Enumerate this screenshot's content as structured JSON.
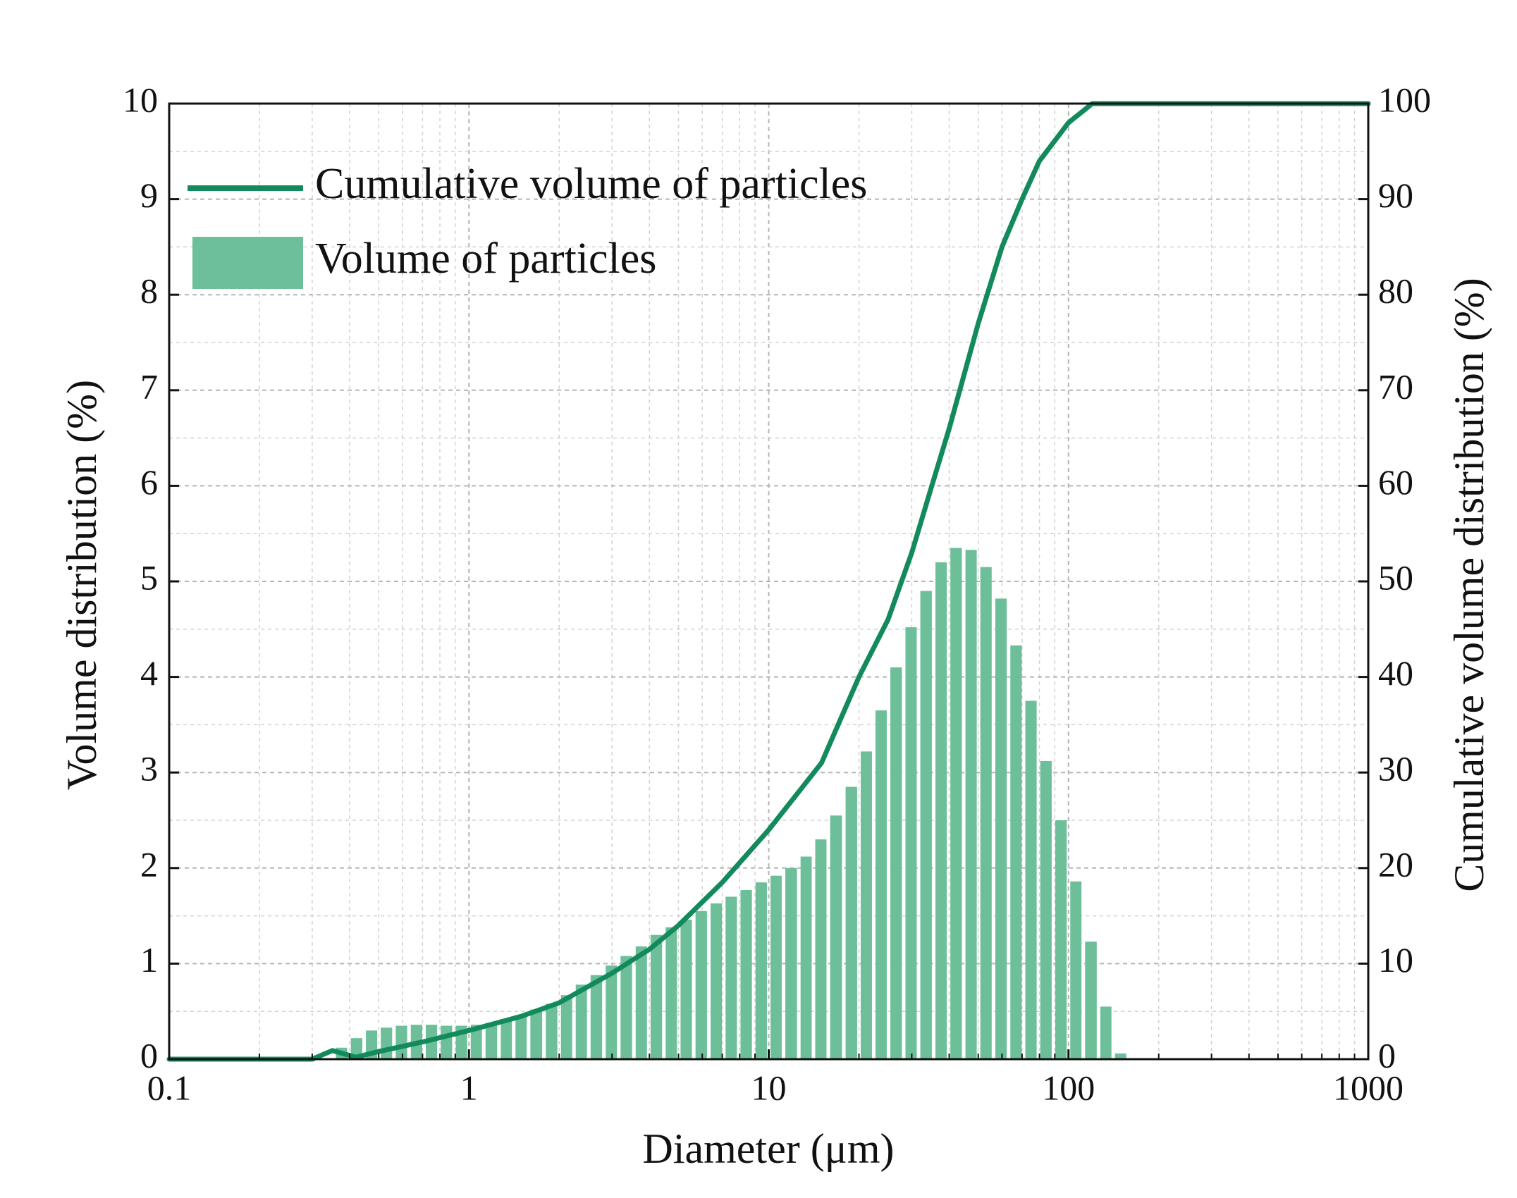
{
  "chart_data": {
    "type": "combo",
    "xlabel": "Diameter (μm)",
    "ylabel": "Volume distribution (%)",
    "y2label": "Cumulative volume distribution (%)",
    "xscale": "log",
    "xlim": [
      0.1,
      1000
    ],
    "xticks": [
      0.1,
      1,
      10,
      100,
      1000
    ],
    "ylim": [
      0,
      10
    ],
    "yticks": [
      0,
      1,
      2,
      3,
      4,
      5,
      6,
      7,
      8,
      9,
      10
    ],
    "y2lim": [
      0,
      100
    ],
    "y2ticks": [
      0,
      10,
      20,
      30,
      40,
      50,
      60,
      70,
      80,
      90,
      100
    ],
    "grid": true,
    "minor_grid": true,
    "legend": "upper left",
    "series": [
      {
        "name": "Cumulative volume of particles",
        "type": "line",
        "axis": "y2",
        "color": "#138a5c",
        "x": [
          0.1,
          0.3,
          0.35,
          0.42,
          0.5,
          0.7,
          1,
          1.5,
          2,
          3,
          4,
          5,
          7,
          10,
          15,
          20,
          25,
          30,
          35,
          40,
          50,
          60,
          70,
          80,
          100,
          120,
          150,
          1000
        ],
        "values": [
          0,
          0,
          0.9,
          0.2,
          0.8,
          1.8,
          3,
          4.5,
          5.9,
          9,
          11.5,
          14,
          18.5,
          24,
          31,
          40,
          46,
          53,
          60,
          66,
          77,
          85,
          90,
          94,
          98,
          100,
          100,
          100
        ]
      },
      {
        "name": "Volume of particles",
        "type": "histogram",
        "color": "#6dbf99",
        "bins": [
          0.355,
          0.398,
          0.447,
          0.501,
          0.562,
          0.631,
          0.708,
          0.794,
          0.891,
          1,
          1.12,
          1.26,
          1.41,
          1.58,
          1.78,
          2.0,
          2.24,
          2.51,
          2.82,
          3.16,
          3.55,
          3.98,
          4.47,
          5.01,
          5.62,
          6.31,
          7.08,
          7.94,
          8.91,
          10,
          11.2,
          12.6,
          14.1,
          15.8,
          17.8,
          20.0,
          22.4,
          25.1,
          28.2,
          31.6,
          35.5,
          39.8,
          44.7,
          50.1,
          56.2,
          63.1,
          70.8,
          79.4,
          89.1,
          100,
          112,
          126,
          141,
          158
        ],
        "values": [
          0.12,
          0.22,
          0.3,
          0.33,
          0.35,
          0.36,
          0.36,
          0.35,
          0.35,
          0.36,
          0.38,
          0.42,
          0.46,
          0.52,
          0.58,
          0.67,
          0.78,
          0.88,
          0.98,
          1.08,
          1.18,
          1.3,
          1.38,
          1.46,
          1.55,
          1.63,
          1.7,
          1.77,
          1.85,
          1.92,
          2.0,
          2.12,
          2.3,
          2.55,
          2.85,
          3.22,
          3.65,
          4.1,
          4.52,
          4.9,
          5.2,
          5.35,
          5.33,
          5.15,
          4.82,
          4.33,
          3.75,
          3.12,
          2.5,
          1.86,
          1.23,
          0.55,
          0.06
        ]
      }
    ]
  }
}
